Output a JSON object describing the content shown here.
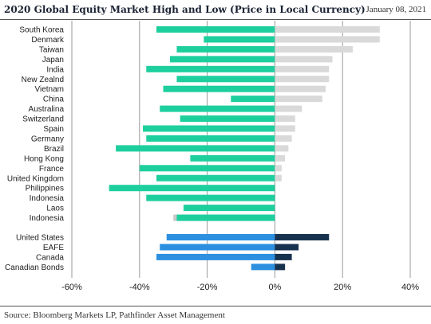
{
  "header": {
    "title": "2020 Global Equity Market High and Low (Price in Local Currency)",
    "date": "January 08, 2021"
  },
  "footer": {
    "source": "Source: Bloomberg Markets LP, Pathfinder Asset Management"
  },
  "colors": {
    "low_international": "#1ecf9e",
    "high_international": "#d9d9d9",
    "low_us_group": "#2c8fe0",
    "high_us_group": "#17324f",
    "gridline": "#9a9a9a"
  },
  "chart_data": {
    "type": "bar",
    "orientation": "horizontal",
    "title": "2020 Global Equity Market High and Low (Price in Local Currency)",
    "xlim": [
      -0.6,
      0.4
    ],
    "xticks": [
      "-60%",
      "-40%",
      "-20%",
      "0%",
      "20%",
      "40%"
    ],
    "grid": "vertical",
    "groups": [
      {
        "categories": [
          "South Korea",
          "Denmark",
          "Taiwan",
          "Japan",
          "India",
          "New Zealnd",
          "Vietnam",
          "China",
          "Australina",
          "Switzerland",
          "Spain",
          "Germany",
          "Brazil",
          "Hong Kong",
          "France",
          "United Kingdom",
          "Philippines",
          "Indonesia",
          "Laos",
          "Indonesia"
        ],
        "low": [
          -0.35,
          -0.21,
          -0.29,
          -0.31,
          -0.38,
          -0.29,
          -0.33,
          -0.13,
          -0.34,
          -0.28,
          -0.39,
          -0.38,
          -0.47,
          -0.25,
          -0.4,
          -0.35,
          -0.49,
          -0.38,
          -0.27,
          -0.29
        ],
        "low_shadow": [
          null,
          null,
          null,
          null,
          null,
          null,
          null,
          null,
          null,
          null,
          null,
          null,
          null,
          null,
          null,
          null,
          null,
          null,
          null,
          -0.3
        ],
        "high": [
          0.31,
          0.31,
          0.23,
          0.17,
          0.16,
          0.16,
          0.15,
          0.14,
          0.08,
          0.06,
          0.06,
          0.05,
          0.04,
          0.03,
          0.02,
          0.02,
          0.0,
          0.0,
          0.0,
          0.0
        ]
      },
      {
        "categories": [
          "United States",
          "EAFE",
          "Canada",
          "Canadian Bonds"
        ],
        "low": [
          -0.32,
          -0.34,
          -0.35,
          -0.07
        ],
        "high": [
          0.16,
          0.07,
          0.05,
          0.03
        ]
      }
    ]
  }
}
